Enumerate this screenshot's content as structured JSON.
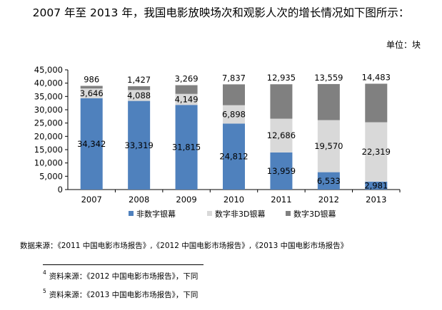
{
  "heading": "2007 年至 2013 年，我国电影放映场次和观影人次的增长情况如下图所示：",
  "unit_label": "单位：块",
  "chart_data": {
    "type": "bar",
    "stacked": true,
    "categories": [
      "2007",
      "2008",
      "2009",
      "2010",
      "2011",
      "2012",
      "2013"
    ],
    "series": [
      {
        "name": "非数字银幕",
        "color": "#4F81BD",
        "values": [
          34342,
          33319,
          31815,
          24812,
          13959,
          6533,
          2981
        ],
        "labels": [
          "34,342",
          "33,319",
          "31,815",
          "24,812",
          "13,959",
          "6,533",
          "2,981"
        ]
      },
      {
        "name": "数字非3D银幕",
        "color": "#D9D9D9",
        "values": [
          3646,
          4088,
          4149,
          6898,
          12686,
          19570,
          22319
        ],
        "labels": [
          "3,646",
          "4,088",
          "4,149",
          "6,898",
          "12,686",
          "19,570",
          "22,319"
        ]
      },
      {
        "name": "数字3D银幕",
        "color": "#808080",
        "values": [
          986,
          1427,
          3269,
          7837,
          12935,
          13559,
          14483
        ],
        "labels": [
          "986",
          "1,427",
          "3,269",
          "7,837",
          "12,935",
          "13,559",
          "14,483"
        ]
      }
    ],
    "ylim": [
      0,
      45000
    ],
    "yticks": [
      0,
      5000,
      10000,
      15000,
      20000,
      25000,
      30000,
      35000,
      40000,
      45000
    ],
    "ytick_labels": [
      "0",
      "5,000",
      "10,000",
      "15,000",
      "20,000",
      "25,000",
      "30,000",
      "35,000",
      "40,000",
      "45,000"
    ],
    "legend_position": "bottom",
    "grid": false
  },
  "source_text": "数据来源：《2011 中国电影市场报告》,《2012 中国电影市场报告》,《2013 中国电影市场报告》",
  "footnotes": [
    {
      "mark": "4",
      "text": "资料来源：《2012 中国电影市场报告》，下同"
    },
    {
      "mark": "5",
      "text": "资料来源：《2013 中国电影市场报告》，下同"
    }
  ]
}
